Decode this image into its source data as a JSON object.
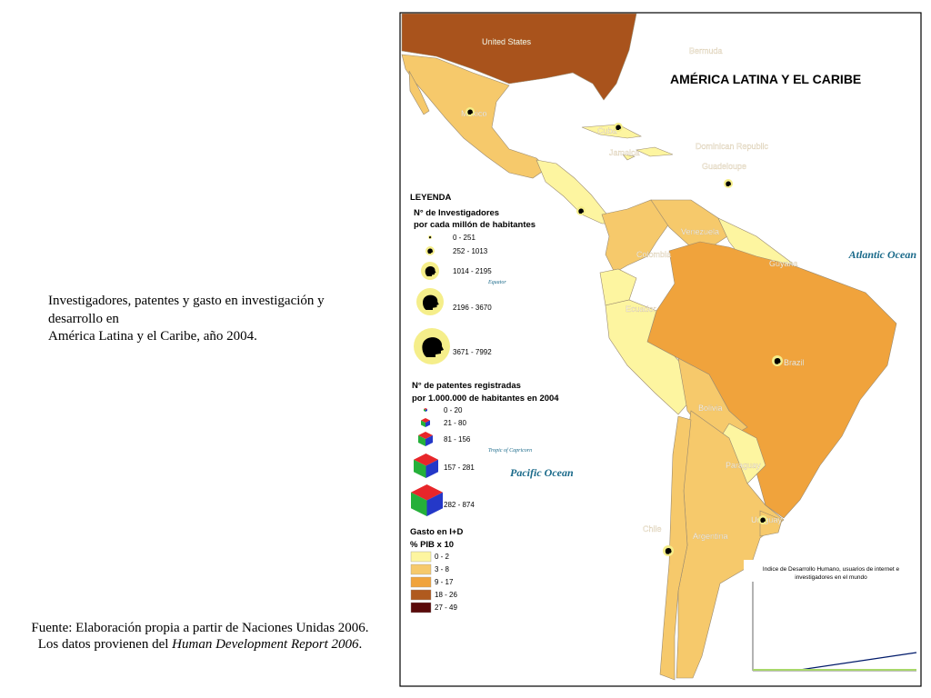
{
  "caption": {
    "lines": [
      "Investigadores, patentes y gasto en investigación y",
      "desarrollo en",
      "América Latina y el Caribe, año 2004."
    ]
  },
  "source": {
    "line1": "Fuente: Elaboración propia a partir de Naciones Unidas 2006.",
    "line2_start": "Los datos provienen del",
    "line2_italic": "Human Development Report 2006",
    "line2_end": "."
  },
  "map": {
    "title": "AMÉRICA LATINA Y EL CARIBE",
    "oceans": {
      "atlantic": "Atlantic Ocean",
      "pacific": "Pacific Ocean",
      "equator": "Equator",
      "capricorn": "Tropic of Capricorn"
    },
    "countries": [
      "United States",
      "Bermuda",
      "Mexico",
      "Cuba",
      "Jamaica",
      "Dominican Republic",
      "Guadeloupe",
      "Venezuela",
      "Colombia",
      "Guyana",
      "Ecuador",
      "Brazil",
      "Bolivia",
      "Paraguay",
      "Chile",
      "Argentina",
      "Uruguay"
    ],
    "legend": {
      "title": "LEYENDA",
      "researchers": {
        "title": "N° de Investigadores",
        "subtitle": "por cada millón de habitantes",
        "classes": [
          "0 - 251",
          "252 - 1013",
          "1014 - 2195",
          "2196 - 3670",
          "3671 - 7992"
        ]
      },
      "patents": {
        "title": "N° de patentes registradas",
        "subtitle": "por 1.000.000 de habitantes en 2004",
        "classes": [
          "0 - 20",
          "21 - 80",
          "81 - 156",
          "157 - 281",
          "282 - 874"
        ]
      },
      "spending": {
        "title": "Gasto en I+D",
        "subtitle": "% PIB x 10",
        "classes": [
          "0 - 2",
          "3 - 8",
          "9 - 17",
          "18 - 26",
          "27 - 49"
        ]
      }
    },
    "inset": {
      "title_lines": [
        "Indice de Desarrollo Humano, usuarios de internet e",
        "investigadores en el mundo"
      ]
    }
  }
}
